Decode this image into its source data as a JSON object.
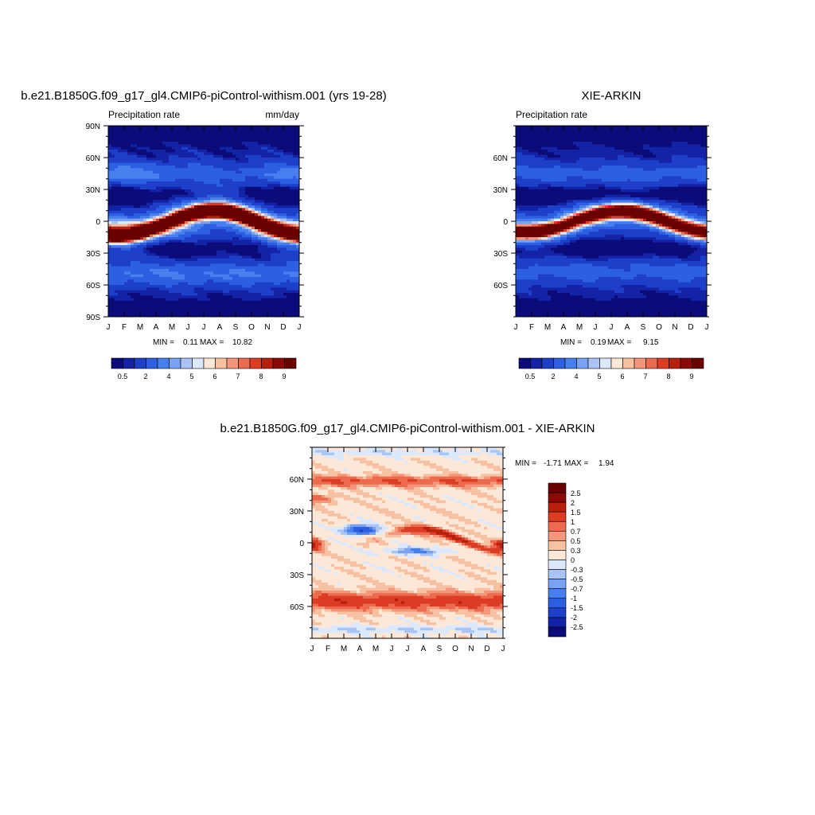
{
  "chart_data": [
    {
      "type": "heatmap",
      "title": "b.e21.B1850G.f09_g17_gl4.CMIP6-piControl-withism.001 (yrs 19-28)",
      "left_label": "Precipitation rate",
      "right_label": "mm/day",
      "x_tick_labels": [
        "J",
        "F",
        "M",
        "A",
        "M",
        "J",
        "J",
        "A",
        "S",
        "O",
        "N",
        "D",
        "J"
      ],
      "y_tick_labels": [
        "90N",
        "60N",
        "30N",
        "0",
        "30S",
        "60S",
        "90S"
      ],
      "ylim": [
        -90,
        90
      ],
      "min_label": "MIN =",
      "min_value": "0.11",
      "max_label": "MAX =",
      "max_value": "10.82",
      "colorbar": {
        "orientation": "horizontal",
        "levels": [
          0.5,
          1,
          2,
          3,
          4,
          4.5,
          5,
          5.5,
          6,
          6.5,
          7,
          7.5,
          8,
          8.5,
          9
        ],
        "labels": [
          "0.5",
          "2",
          "4",
          "5",
          "6",
          "7",
          "8",
          "9"
        ]
      }
    },
    {
      "type": "heatmap",
      "title": "XIE-ARKIN",
      "left_label": "Precipitation rate",
      "right_label": "",
      "x_tick_labels": [
        "J",
        "F",
        "M",
        "A",
        "M",
        "J",
        "J",
        "A",
        "S",
        "O",
        "N",
        "D",
        "J"
      ],
      "y_tick_labels": [
        "60N",
        "30N",
        "0",
        "30S",
        "60S"
      ],
      "ylim": [
        -90,
        90
      ],
      "min_label": "MIN =",
      "min_value": "0.19",
      "max_label": "MAX =",
      "max_value": "9.15",
      "colorbar": {
        "orientation": "horizontal",
        "levels": [
          0.5,
          1,
          2,
          3,
          4,
          4.5,
          5,
          5.5,
          6,
          6.5,
          7,
          7.5,
          8,
          8.5,
          9
        ],
        "labels": [
          "0.5",
          "2",
          "4",
          "5",
          "6",
          "7",
          "8",
          "9"
        ]
      }
    },
    {
      "type": "heatmap",
      "title": "b.e21.B1850G.f09_g17_gl4.CMIP6-piControl-withism.001 - XIE-ARKIN",
      "left_label": "",
      "right_label": "",
      "x_tick_labels": [
        "J",
        "F",
        "M",
        "A",
        "M",
        "J",
        "J",
        "A",
        "S",
        "O",
        "N",
        "D",
        "J"
      ],
      "y_tick_labels": [
        "60N",
        "30N",
        "0",
        "30S",
        "60S"
      ],
      "ylim": [
        -90,
        90
      ],
      "min_label": "MIN =",
      "min_value": "-1.71",
      "max_label": "MAX =",
      "max_value": "1.94",
      "colorbar": {
        "orientation": "vertical",
        "levels": [
          -2.5,
          -2,
          -1.5,
          -1,
          -0.7,
          -0.5,
          -0.3,
          0,
          0.3,
          0.5,
          0.7,
          1,
          1.5,
          2,
          2.5
        ],
        "labels": [
          "2.5",
          "2",
          "1.5",
          "1",
          "0.7",
          "0.5",
          "0.3",
          "0",
          "-0.3",
          "-0.5",
          "-0.7",
          "-1",
          "-1.5",
          "-2",
          "-2.5"
        ]
      }
    }
  ],
  "palettes": {
    "precip": [
      "#0b0b7a",
      "#1422a6",
      "#1e3fc9",
      "#2c5fe2",
      "#4780ee",
      "#7aa2f2",
      "#a9c4f5",
      "#dce8fb",
      "#fde8d8",
      "#f7c1a4",
      "#f3967a",
      "#ec6a4e",
      "#dc3c23",
      "#b7200f",
      "#8b0a05",
      "#680100"
    ],
    "diff": [
      "#0b0b7a",
      "#1422a6",
      "#1e3fc9",
      "#2c5fe2",
      "#4780ee",
      "#7aa2f2",
      "#a9c4f5",
      "#dce8fb",
      "#fde8d8",
      "#f7c1a4",
      "#f3967a",
      "#ec6a4e",
      "#dc3c23",
      "#b7200f",
      "#8b0a05",
      "#680100"
    ]
  }
}
